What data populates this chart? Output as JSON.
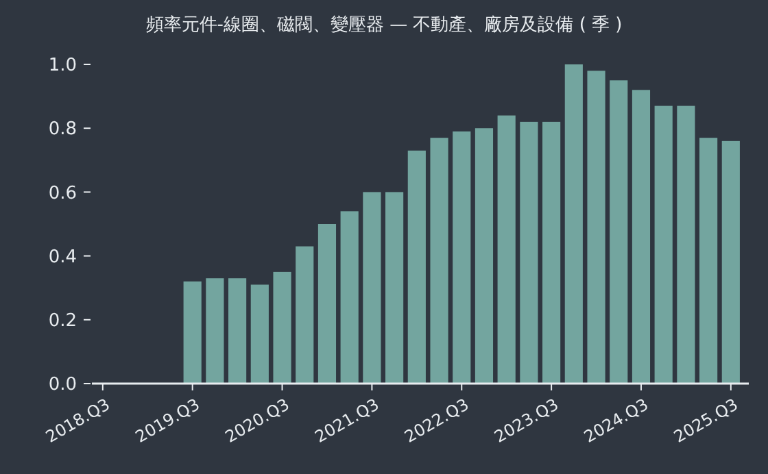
{
  "chart_data": {
    "type": "bar",
    "title": "頻率元件-線圈、磁閥、變壓器 — 不動產、廠房及設備 ( 季 )",
    "categories": [
      "2018.Q3",
      null,
      null,
      null,
      "2019.Q3",
      null,
      null,
      null,
      "2020.Q3",
      null,
      null,
      null,
      "2021.Q3",
      null,
      null,
      null,
      "2022.Q3",
      null,
      null,
      null,
      "2023.Q3",
      null,
      null,
      null,
      "2024.Q3",
      null,
      null,
      null,
      "2025.Q3"
    ],
    "values": [
      null,
      null,
      null,
      null,
      0.32,
      0.33,
      0.33,
      0.31,
      0.35,
      0.43,
      0.5,
      0.54,
      0.6,
      0.6,
      0.73,
      0.77,
      0.79,
      0.8,
      0.84,
      0.82,
      0.82,
      1.0,
      0.98,
      0.95,
      0.92,
      0.87,
      0.87,
      0.77,
      0.76
    ],
    "color": "#73a59f",
    "ylim": [
      0,
      1
    ],
    "yticks": [
      {
        "value": 0,
        "label": "0.0"
      },
      {
        "value": 0.2,
        "label": "0.2"
      },
      {
        "value": 0.4,
        "label": "0.4"
      },
      {
        "value": 0.6,
        "label": "0.6"
      },
      {
        "value": 0.8,
        "label": "0.8"
      },
      {
        "value": 1,
        "label": "1.0"
      }
    ],
    "grid": false
  }
}
